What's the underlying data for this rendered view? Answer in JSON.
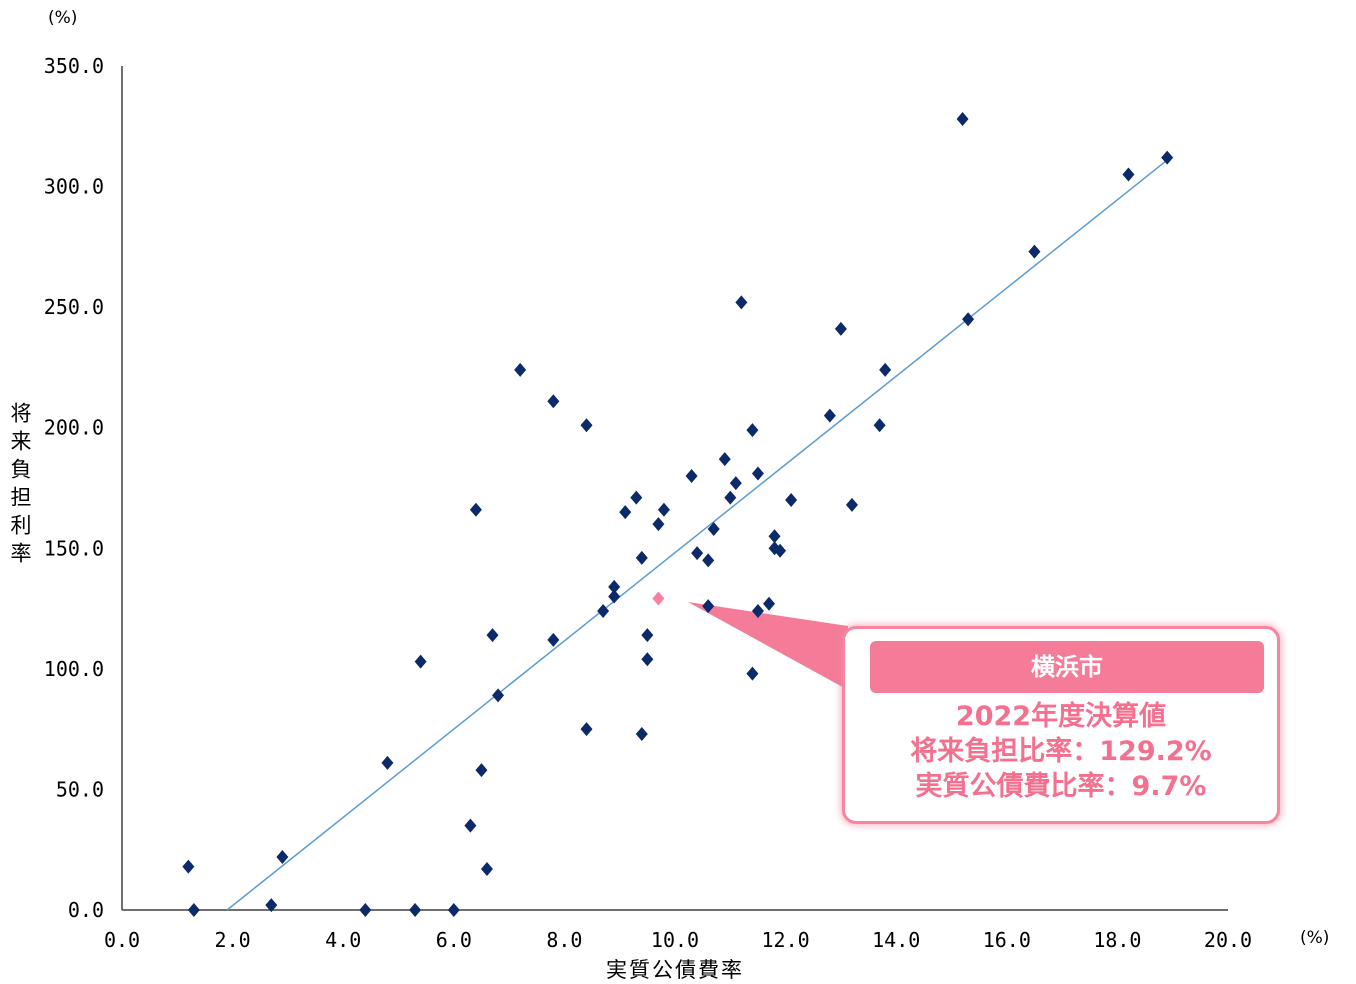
{
  "chart_data": {
    "type": "scatter",
    "xlabel": "実質公債費率",
    "ylabel": "将来負担利率",
    "x_unit": "(%)",
    "y_unit": "(%)",
    "xlim": [
      0,
      20
    ],
    "ylim": [
      0,
      350
    ],
    "grid": false,
    "x_ticks": [
      0,
      2,
      4,
      6,
      8,
      10,
      12,
      14,
      16,
      18,
      20
    ],
    "x_tick_labels": [
      "0.0",
      "2.0",
      "4.0",
      "6.0",
      "8.0",
      "10.0",
      "12.0",
      "14.0",
      "16.0",
      "18.0",
      "20.0"
    ],
    "y_ticks": [
      0,
      50,
      100,
      150,
      200,
      250,
      300,
      350
    ],
    "y_tick_labels": [
      "0.0",
      "50.0",
      "100.0",
      "150.0",
      "200.0",
      "250.0",
      "300.0",
      "350.0"
    ],
    "series": [
      {
        "marker": "diamond",
        "color": "#0c2a6a",
        "points": [
          [
            1.2,
            18
          ],
          [
            1.3,
            0
          ],
          [
            2.7,
            2
          ],
          [
            2.9,
            22
          ],
          [
            4.4,
            0
          ],
          [
            4.8,
            61
          ],
          [
            5.3,
            0
          ],
          [
            5.4,
            103
          ],
          [
            6.0,
            0
          ],
          [
            6.3,
            35
          ],
          [
            6.4,
            166
          ],
          [
            6.5,
            58
          ],
          [
            6.6,
            17
          ],
          [
            6.7,
            114
          ],
          [
            6.8,
            89
          ],
          [
            7.2,
            224
          ],
          [
            7.8,
            211
          ],
          [
            7.8,
            112
          ],
          [
            8.4,
            75
          ],
          [
            8.4,
            201
          ],
          [
            8.7,
            124
          ],
          [
            8.9,
            130
          ],
          [
            8.9,
            134
          ],
          [
            9.1,
            165
          ],
          [
            9.3,
            171
          ],
          [
            9.4,
            146
          ],
          [
            9.4,
            73
          ],
          [
            9.5,
            114
          ],
          [
            9.5,
            104
          ],
          [
            9.7,
            160
          ],
          [
            9.8,
            166
          ],
          [
            10.3,
            180
          ],
          [
            10.4,
            148
          ],
          [
            10.6,
            145
          ],
          [
            10.6,
            126
          ],
          [
            10.7,
            158
          ],
          [
            10.9,
            187
          ],
          [
            11.0,
            171
          ],
          [
            11.1,
            177
          ],
          [
            11.2,
            252
          ],
          [
            11.4,
            199
          ],
          [
            11.4,
            98
          ],
          [
            11.5,
            124
          ],
          [
            11.5,
            181
          ],
          [
            11.7,
            127
          ],
          [
            11.8,
            155
          ],
          [
            11.8,
            150
          ],
          [
            11.9,
            149
          ],
          [
            12.1,
            170
          ],
          [
            12.8,
            205
          ],
          [
            13.0,
            241
          ],
          [
            13.2,
            168
          ],
          [
            13.7,
            201
          ],
          [
            13.8,
            224
          ],
          [
            15.2,
            328
          ],
          [
            15.3,
            245
          ],
          [
            16.5,
            273
          ],
          [
            18.2,
            305
          ],
          [
            18.9,
            312
          ]
        ]
      }
    ],
    "trendline": {
      "x": [
        1.9,
        18.9
      ],
      "y": [
        0,
        311
      ],
      "color": "#5b9bd5"
    },
    "highlight": {
      "x": 9.7,
      "y": 129.2,
      "color": "#f4829f"
    },
    "callout": {
      "title": "横浜市",
      "lines": [
        "2022年度決算値",
        "将来負担比率：129.2%",
        "実質公債費比率：9.7%"
      ],
      "accent_color": "#f47c98",
      "text_color": "#f4708f"
    }
  }
}
